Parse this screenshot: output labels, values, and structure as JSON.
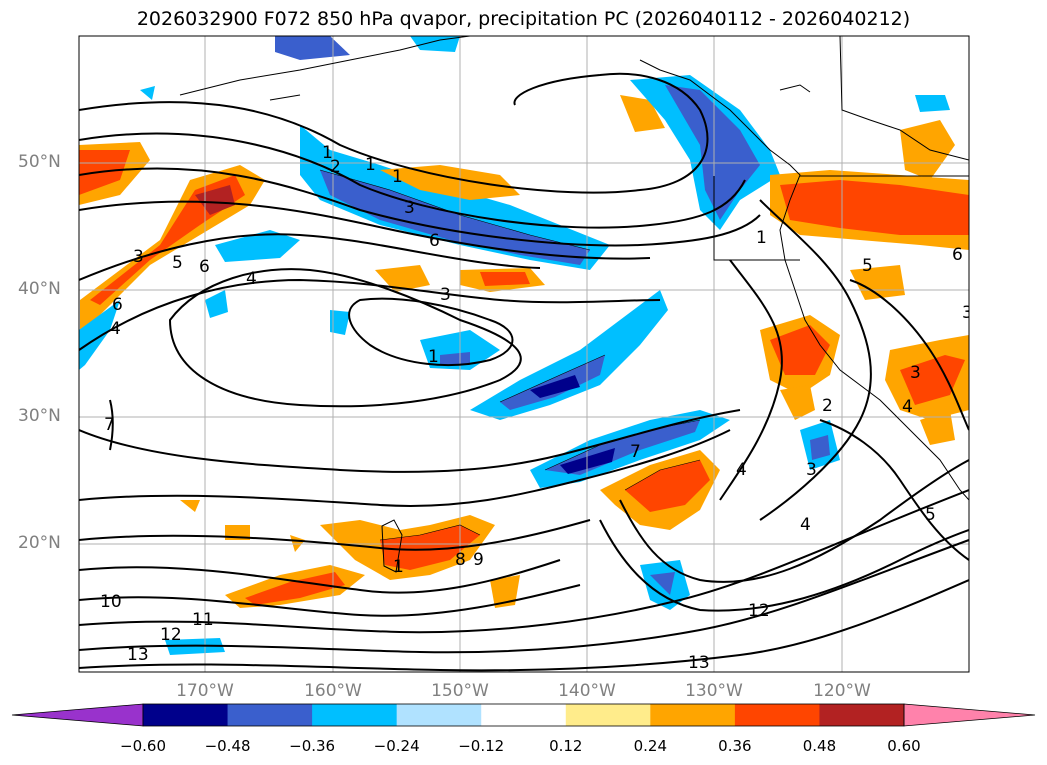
{
  "title": "2026032900 F072 850 hPa qvapor, precipitation PC (2026040112 - 2026040212)",
  "map": {
    "lat_ticks": [
      "50°N",
      "40°N",
      "30°N",
      "20°N"
    ],
    "lon_ticks": [
      "170°W",
      "160°W",
      "150°W",
      "140°W",
      "130°W",
      "120°W"
    ],
    "contour_labels": [
      "1",
      "2",
      "1",
      "1",
      "3",
      "6",
      "3",
      "5",
      "6",
      "4",
      "3",
      "4",
      "6",
      "1",
      "3",
      "1",
      "7",
      "7",
      "4",
      "2",
      "3",
      "4",
      "5",
      "5",
      "6",
      "3",
      "4",
      "8",
      "9",
      "1",
      "10",
      "11",
      "12",
      "13",
      "12",
      "13"
    ]
  },
  "colorbar": {
    "colors": [
      "#9932cc",
      "#00008b",
      "#3a5fcd",
      "#00bfff",
      "#b0e2ff",
      "#ffffff",
      "#ffec8b",
      "#ffa500",
      "#ff4500",
      "#b22222",
      "#ff82ab"
    ],
    "tick_labels": [
      "−0.60",
      "−0.48",
      "−0.36",
      "−0.24",
      "−0.12",
      "0.12",
      "0.24",
      "0.36",
      "0.48",
      "0.60"
    ]
  }
}
